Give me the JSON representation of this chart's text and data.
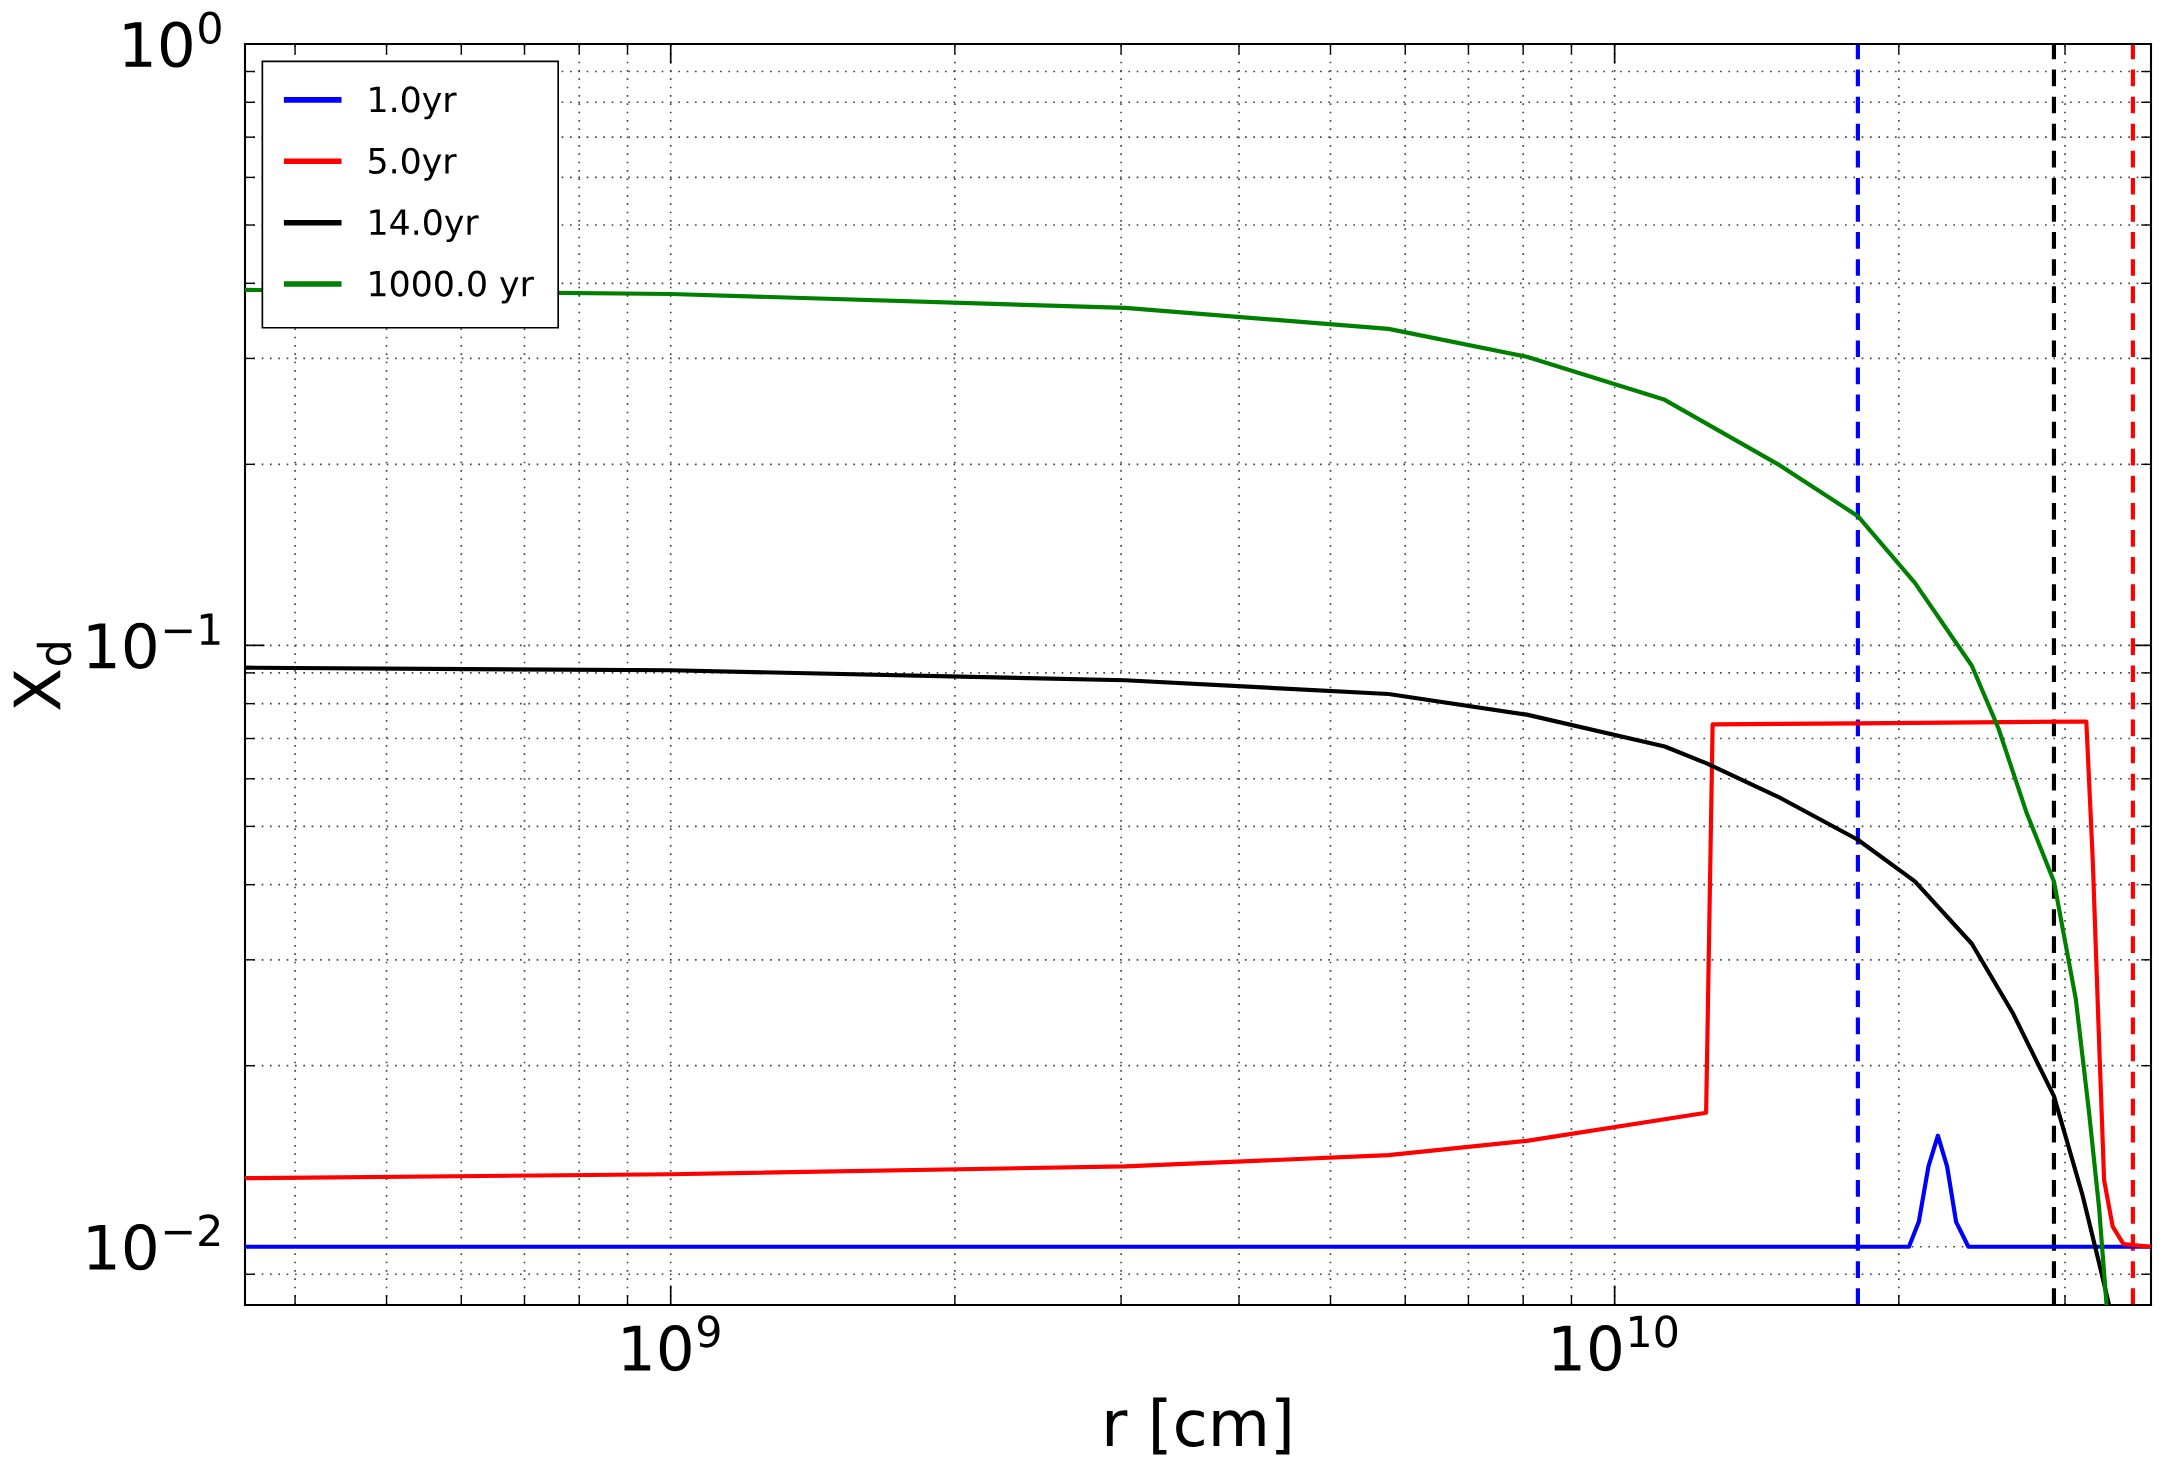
{
  "chart_data": {
    "type": "line",
    "xlabel": "r [cm]",
    "ylabel": "X$_{d}$",
    "log": "xy",
    "xlim": [
      354000000.0,
      37000000000.0
    ],
    "ylim": [
      0.008,
      1
    ],
    "xticks": [
      {
        "value": 1000000000.0,
        "label": "10$^{9}$"
      },
      {
        "value": 10000000000.0,
        "label": "10$^{10}$"
      }
    ],
    "yticks": [
      {
        "value": 0.01,
        "label": "10$^{−2}$"
      },
      {
        "value": 0.1,
        "label": "10$^{−1}$"
      },
      {
        "value": 1,
        "label": "10$^{0}$"
      }
    ],
    "grid": true,
    "legend": "top left",
    "line_style": "solid",
    "marker": "none",
    "series": [
      {
        "name": "1.0yr",
        "color": "#0000ff",
        "x": [
          354000000.0,
          1000000000.0,
          10000000000.0,
          20500000000.0,
          21000000000.0,
          21500000000.0,
          22000000000.0,
          22500000000.0,
          23000000000.0,
          23700000000.0,
          37000000000.0
        ],
        "values": [
          0.01,
          0.01,
          0.01,
          0.01,
          0.011,
          0.0136,
          0.0153,
          0.0136,
          0.011,
          0.01,
          0.01
        ]
      },
      {
        "name": "5.0yr",
        "color": "#ff0000",
        "x": [
          354000000.0,
          1000000000.0,
          3030000000.0,
          5760000000.0,
          8070000000.0,
          12500000000.0,
          12700000000.0,
          18100000000.0,
          31600000000.0,
          32100000000.0,
          32600000000.0,
          33000000000.0,
          33700000000.0,
          34600000000.0,
          37000000000.0
        ],
        "values": [
          0.013,
          0.0132,
          0.0136,
          0.0142,
          0.015,
          0.0167,
          0.0739,
          0.0742,
          0.0747,
          0.0439,
          0.0219,
          0.0129,
          0.0108,
          0.0101,
          0.01
        ]
      },
      {
        "name": "14.0yr",
        "color": "#000000",
        "x": [
          354000000.0,
          1000000000.0,
          3030000000.0,
          5760000000.0,
          8070000000.0,
          11300000000.0,
          12500000000.0,
          14900000000.0,
          18100000000.0,
          20800000000.0,
          23900000000.0,
          26400000000.0,
          29200000000.0,
          31300000000.0,
          32600000000.0,
          33400000000.0
        ],
        "values": [
          0.0918,
          0.0909,
          0.0875,
          0.083,
          0.0767,
          0.0679,
          0.0637,
          0.056,
          0.0475,
          0.0405,
          0.0319,
          0.0245,
          0.0178,
          0.0122,
          0.0094,
          0.008
        ]
      },
      {
        "name": "1000.0 yr",
        "color": "#008000",
        "x": [
          354000000.0,
          1000000000.0,
          3030000000.0,
          5760000000.0,
          8070000000.0,
          11300000000.0,
          14900000000.0,
          18100000000.0,
          20800000000.0,
          23900000000.0,
          25500000000.0,
          27300000000.0,
          29200000000.0,
          30800000000.0,
          31800000000.0,
          32600000000.0,
          33200000000.0
        ],
        "values": [
          0.39,
          0.384,
          0.364,
          0.336,
          0.302,
          0.256,
          0.2,
          0.164,
          0.127,
          0.0925,
          0.0728,
          0.0528,
          0.0405,
          0.0258,
          0.0168,
          0.0116,
          0.008
        ]
      }
    ],
    "ref_lines": [
      {
        "axis": "x",
        "value": 18100000000.0,
        "color": "#0000ff",
        "line_style": "dashed"
      },
      {
        "axis": "x",
        "value": 29200000000.0,
        "color": "#000000",
        "line_style": "dashed"
      },
      {
        "axis": "x",
        "value": 35400000000.0,
        "color": "#ff0000",
        "line_style": "dashed"
      }
    ]
  }
}
